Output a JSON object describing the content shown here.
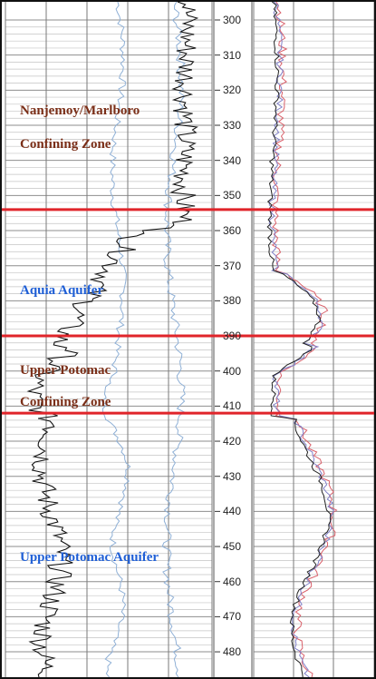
{
  "log": {
    "depth_unit": "",
    "depth_ticks": [
      300,
      310,
      320,
      330,
      340,
      350,
      360,
      370,
      380,
      390,
      400,
      410,
      420,
      430,
      440,
      450,
      460,
      470,
      480
    ],
    "boundaries": [
      {
        "depth": 354,
        "color": "#e0242a"
      },
      {
        "depth": 390,
        "color": "#e0242a"
      },
      {
        "depth": 412,
        "color": "#e0242a"
      }
    ],
    "zones": [
      {
        "id": "nanjemoy-marlboro",
        "text": "Nanjemoy/Marlboro",
        "color": "#7a2e17"
      },
      {
        "id": "nanjemoy-confining",
        "text": "Confining Zone",
        "color": "#7a2e17"
      },
      {
        "id": "aquia",
        "text": "Aquia Aquifer",
        "color": "#1f5fd6"
      },
      {
        "id": "upper-potomac",
        "text": "Upper Potomac",
        "color": "#7a2e17"
      },
      {
        "id": "upper-potomac-confining",
        "text": "Confining Zone",
        "color": "#7a2e17"
      },
      {
        "id": "upper-potomac-aquifer",
        "text": "Upper Potomac Aquifer",
        "color": "#1f5fd6"
      }
    ],
    "curve_colors": {
      "gamma": "#111111",
      "left_light": "#8fb0d6",
      "resistivity_dark": "#222222",
      "resistivity_red": "#d9606a",
      "resistivity_blue": "#8080c8"
    }
  }
}
